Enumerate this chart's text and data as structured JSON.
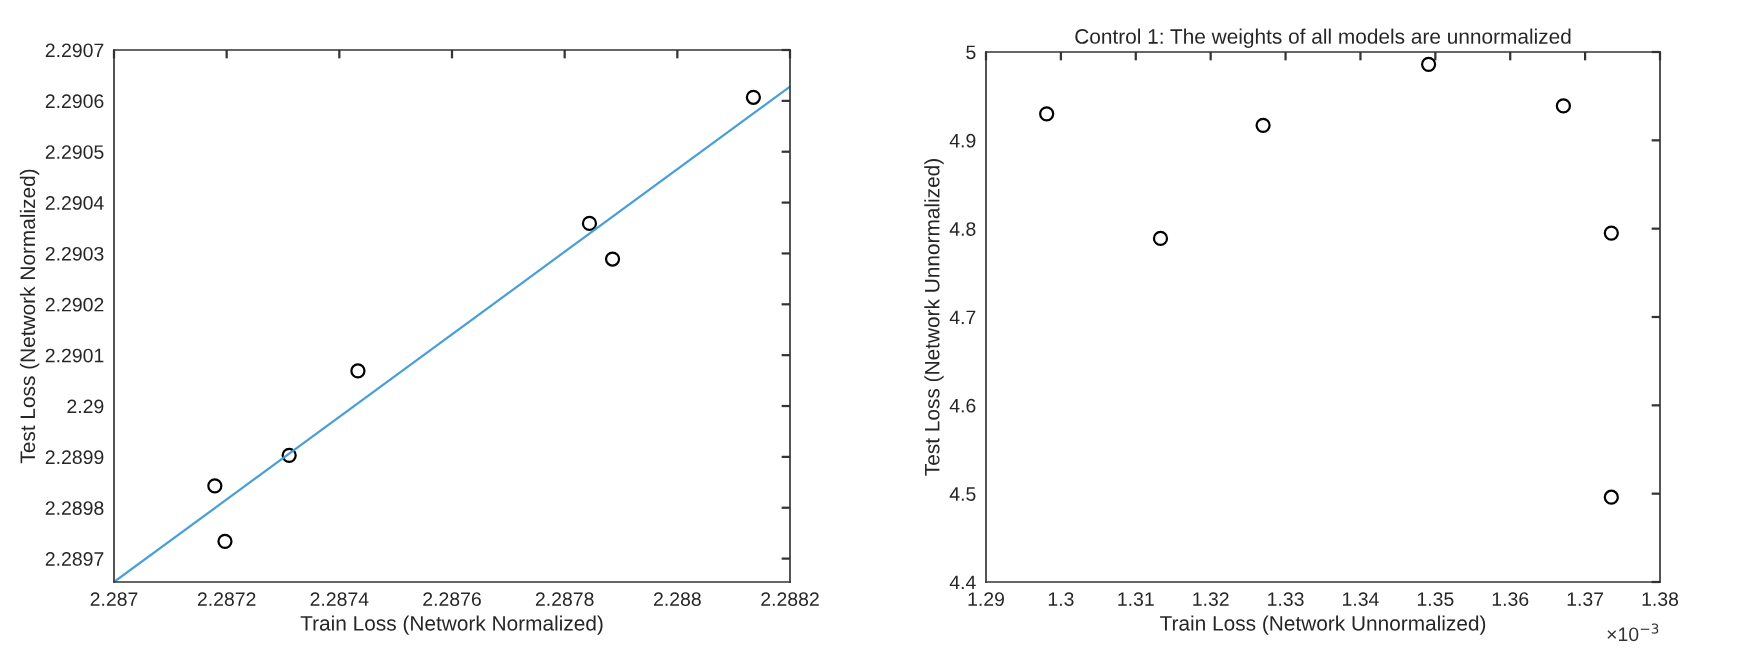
{
  "chart_data": [
    {
      "type": "scatter",
      "xlabel": "Train Loss (Network Normalized)",
      "ylabel": "Test Loss (Network Normalized)",
      "xlim": [
        2.287,
        2.2882
      ],
      "ylim": [
        2.289654,
        2.2907
      ],
      "xticks": [
        2.287,
        2.2872,
        2.2874,
        2.2876,
        2.2878,
        2.288,
        2.2882
      ],
      "yticks": [
        2.2897,
        2.2898,
        2.2899,
        2.29,
        2.2901,
        2.2902,
        2.2903,
        2.2904,
        2.2905,
        2.2906,
        2.2907
      ],
      "grid": false,
      "marker": "circle",
      "series": [
        {
          "color": "#000000",
          "x": [
            2.287179,
            2.287197,
            2.287311,
            2.287433,
            2.287844,
            2.287885,
            2.288135
          ],
          "values": [
            2.289843,
            2.289734,
            2.289903,
            2.290069,
            2.290359,
            2.290289,
            2.290607
          ]
        },
        {
          "type": "line",
          "marker": "none",
          "color": "#4a9fd8",
          "x": [
            2.287,
            2.2882
          ],
          "values": [
            2.289654,
            2.290628
          ]
        }
      ]
    },
    {
      "type": "scatter",
      "title": "Control 1: The weights of all models are unnormalized",
      "xlabel": "Train Loss (Network Unnormalized)",
      "ylabel": "Test Loss (Network Unnormalized)",
      "xlim": [
        1.29,
        1.38
      ],
      "ylim": [
        4.4,
        5
      ],
      "xticks": [
        1.29,
        1.3,
        1.31,
        1.32,
        1.33,
        1.34,
        1.35,
        1.36,
        1.37,
        1.38
      ],
      "yticks": [
        4.4,
        4.5,
        4.6,
        4.7,
        4.8,
        4.9,
        5
      ],
      "annotations": [
        "×10$^{−3}$"
      ],
      "grid": false,
      "marker": "circle",
      "series": [
        {
          "color": "#000000",
          "x": [
            1.2981,
            1.3133,
            1.327,
            1.3491,
            1.3671,
            1.3735,
            1.3735
          ],
          "values": [
            4.93,
            4.789,
            4.917,
            4.986,
            4.939,
            4.795,
            4.496
          ]
        }
      ]
    }
  ]
}
